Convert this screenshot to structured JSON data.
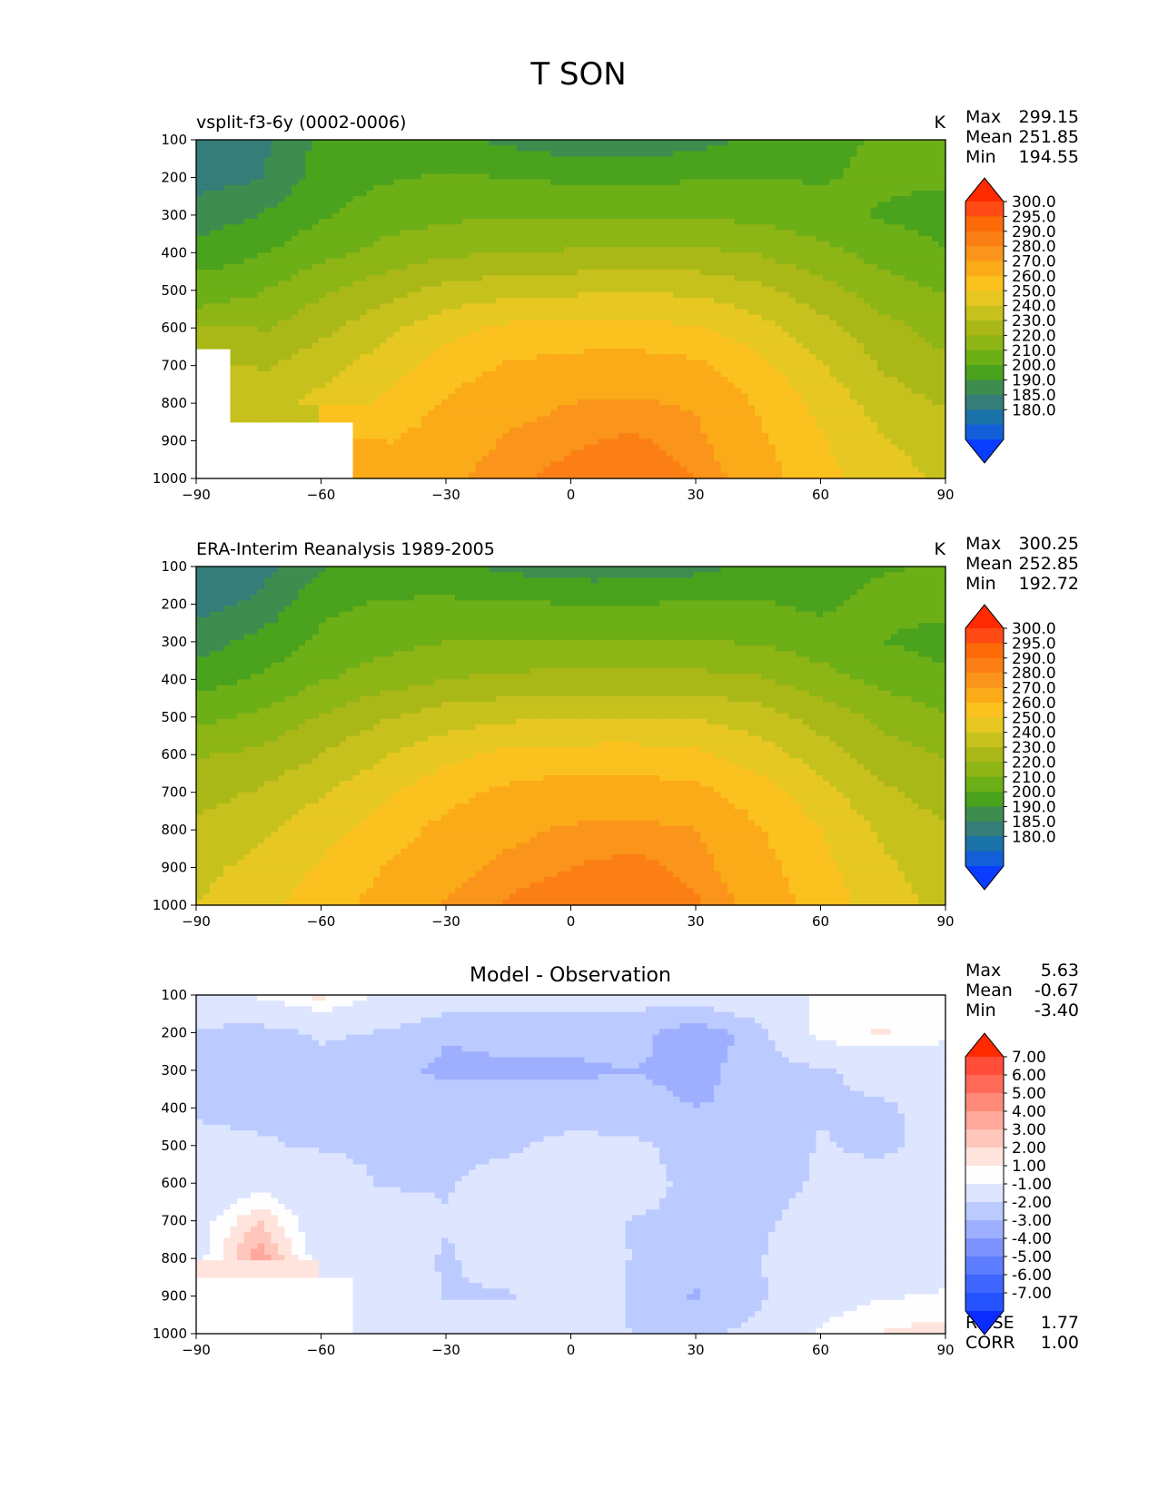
{
  "figure": {
    "title": "T SON"
  },
  "colormaps": {
    "temperature": [
      "#0a3dff",
      "#125fd9",
      "#1a73a8",
      "#357d78",
      "#3e8d4e",
      "#4aa21d",
      "#6daf17",
      "#8db515",
      "#aab817",
      "#c7c11d",
      "#e7c822",
      "#fbc11e",
      "#fbaa18",
      "#fb941a",
      "#fb7f14",
      "#fd6a08",
      "#ff4a16",
      "#ff2a00"
    ],
    "difference": [
      "#0b2bff",
      "#2452ff",
      "#3f66ff",
      "#5c7dff",
      "#7d94ff",
      "#9eafff",
      "#bccbff",
      "#dde5ff",
      "#fefefe",
      "#ffe3dd",
      "#ffc7bc",
      "#ffa89b",
      "#ff8a79",
      "#ff6a58",
      "#ff4d3a",
      "#ff2a00"
    ]
  },
  "panels": [
    {
      "title": "vsplit-f3-6y (0002-0006)",
      "units": "K",
      "stats": [
        {
          "label": "Max",
          "value": "299.15"
        },
        {
          "label": "Mean",
          "value": "251.85"
        },
        {
          "label": "Min",
          "value": "194.55"
        }
      ],
      "colorbar_labels": [
        "300.0",
        "295.0",
        "290.0",
        "280.0",
        "270.0",
        "260.0",
        "250.0",
        "240.0",
        "230.0",
        "220.0",
        "210.0",
        "200.0",
        "190.0",
        "185.0",
        "180.0"
      ]
    },
    {
      "title": "ERA-Interim Reanalysis 1989-2005",
      "units": "K",
      "stats": [
        {
          "label": "Max",
          "value": "300.25"
        },
        {
          "label": "Mean",
          "value": "252.85"
        },
        {
          "label": "Min",
          "value": "192.72"
        }
      ],
      "colorbar_labels": [
        "300.0",
        "295.0",
        "290.0",
        "280.0",
        "270.0",
        "260.0",
        "250.0",
        "240.0",
        "230.0",
        "220.0",
        "210.0",
        "200.0",
        "190.0",
        "185.0",
        "180.0"
      ]
    },
    {
      "title": "Model - Observation",
      "units": "",
      "stats": [
        {
          "label": "Max",
          "value": "5.63"
        },
        {
          "label": "Mean",
          "value": "-0.67"
        },
        {
          "label": "Min",
          "value": "-3.40"
        }
      ],
      "colorbar_labels": [
        "7.00",
        "6.00",
        "5.00",
        "4.00",
        "3.00",
        "2.00",
        "1.00",
        "-1.00",
        "-2.00",
        "-3.00",
        "-4.00",
        "-5.00",
        "-6.00",
        "-7.00"
      ],
      "extra_stats": [
        {
          "label": "RMSE",
          "value": "1.77"
        },
        {
          "label": "CORR",
          "value": "1.00"
        }
      ]
    }
  ],
  "chart_data": [
    {
      "type": "heatmap",
      "title": "vsplit-f3-6y (0002-0006)",
      "units": "K",
      "x_ticks": [
        "−90",
        "−60",
        "−30",
        "0",
        "30",
        "60",
        "90"
      ],
      "y_ticks": [
        "100",
        "200",
        "300",
        "400",
        "500",
        "600",
        "700",
        "800",
        "900",
        "1000"
      ],
      "xlim": [
        -90,
        90
      ],
      "ylim": [
        1000,
        100
      ],
      "levels": [
        180,
        185,
        190,
        200,
        210,
        220,
        230,
        240,
        250,
        260,
        270,
        280,
        290,
        295,
        300
      ],
      "x": [
        -90,
        -75,
        -60,
        -45,
        -30,
        -15,
        0,
        15,
        30,
        45,
        60,
        75,
        90
      ],
      "y": [
        100,
        200,
        300,
        400,
        500,
        600,
        700,
        800,
        900,
        1000
      ],
      "values": [
        [
          195,
          197,
          212,
          214,
          212,
          208,
          203,
          203,
          206,
          213,
          218,
          221,
          223
        ],
        [
          196,
          199,
          215,
          219,
          221,
          220,
          218,
          218,
          219,
          220,
          219,
          222,
          222
        ],
        [
          204,
          210,
          219,
          225,
          228,
          229,
          229,
          229,
          229,
          227,
          224,
          219,
          215
        ],
        [
          214,
          219,
          227,
          233,
          238,
          240,
          241,
          242,
          242,
          239,
          233,
          226,
          221
        ],
        [
          225,
          229,
          238,
          246,
          253,
          257,
          258,
          259,
          258,
          253,
          244,
          235,
          229
        ],
        [
          236,
          238,
          247,
          257,
          266,
          272,
          273,
          273,
          271,
          264,
          254,
          243,
          236
        ],
        [
          null,
          248,
          256,
          265,
          275,
          281,
          284,
          285,
          282,
          273,
          261,
          249,
          242
        ],
        [
          null,
          256,
          263,
          272,
          281,
          287,
          290,
          291,
          289,
          279,
          267,
          255,
          249
        ],
        [
          null,
          null,
          null,
          279,
          285,
          291,
          294,
          296,
          292,
          282,
          271,
          261,
          255
        ],
        [
          null,
          null,
          null,
          282,
          288,
          294,
          297,
          299,
          295,
          285,
          274,
          264,
          258
        ]
      ]
    },
    {
      "type": "heatmap",
      "title": "ERA-Interim Reanalysis 1989-2005",
      "units": "K",
      "x_ticks": [
        "−90",
        "−60",
        "−30",
        "0",
        "30",
        "60",
        "90"
      ],
      "y_ticks": [
        "100",
        "200",
        "300",
        "400",
        "500",
        "600",
        "700",
        "800",
        "900",
        "1000"
      ],
      "xlim": [
        -90,
        90
      ],
      "ylim": [
        1000,
        100
      ],
      "levels": [
        180,
        185,
        190,
        200,
        210,
        220,
        230,
        240,
        250,
        260,
        270,
        280,
        290,
        295,
        300
      ],
      "x": [
        -90,
        -75,
        -60,
        -45,
        -30,
        -15,
        0,
        15,
        30,
        45,
        60,
        75,
        90
      ],
      "y": [
        100,
        200,
        300,
        400,
        500,
        600,
        700,
        800,
        900,
        1000
      ],
      "values": [
        [
          193,
          196,
          209,
          214,
          212,
          208,
          204,
          204,
          207,
          213,
          217,
          219,
          221
        ],
        [
          196,
          202,
          218,
          221,
          222,
          221,
          220,
          220,
          221,
          221,
          218,
          223,
          223
        ],
        [
          205,
          213,
          222,
          227,
          230,
          231,
          231,
          231,
          231,
          229,
          225,
          220,
          216
        ],
        [
          216,
          221,
          229,
          235,
          240,
          242,
          244,
          244,
          243,
          241,
          234,
          227,
          222
        ],
        [
          227,
          232,
          241,
          249,
          255,
          258,
          259,
          260,
          259,
          255,
          246,
          237,
          231
        ],
        [
          239,
          242,
          250,
          259,
          267,
          273,
          274,
          274,
          272,
          265,
          255,
          245,
          239
        ],
        [
          246,
          251,
          259,
          268,
          277,
          282,
          285,
          285,
          283,
          275,
          264,
          252,
          245
        ],
        [
          252,
          258,
          266,
          275,
          283,
          288,
          291,
          292,
          290,
          281,
          270,
          258,
          251
        ],
        [
          257,
          263,
          271,
          280,
          287,
          292,
          295,
          297,
          293,
          284,
          273,
          262,
          254
        ],
        [
          260,
          267,
          275,
          284,
          291,
          296,
          299,
          300,
          296,
          287,
          276,
          265,
          257
        ]
      ]
    },
    {
      "type": "heatmap",
      "title": "Model - Observation",
      "units": "",
      "x_ticks": [
        "−90",
        "−60",
        "−30",
        "0",
        "30",
        "60",
        "90"
      ],
      "y_ticks": [
        "100",
        "200",
        "300",
        "400",
        "500",
        "600",
        "700",
        "800",
        "900",
        "1000"
      ],
      "xlim": [
        -90,
        90
      ],
      "ylim": [
        1000,
        100
      ],
      "levels": [
        -7,
        -6,
        -5,
        -4,
        -3,
        -2,
        -1,
        1,
        2,
        3,
        4,
        5,
        6,
        7
      ],
      "x": [
        -90,
        -75,
        -60,
        -45,
        -30,
        -15,
        0,
        15,
        30,
        45,
        60,
        75,
        90
      ],
      "y": [
        100,
        200,
        300,
        400,
        500,
        600,
        700,
        800,
        900,
        1000
      ],
      "values": [
        [
          0.5,
          1.2,
          2.4,
          0.6,
          -0.2,
          -0.4,
          -0.3,
          -0.5,
          -0.4,
          0.4,
          1.2,
          1.5,
          1.3
        ],
        [
          -1.2,
          -1.6,
          -0.8,
          -1.1,
          -1.9,
          -1.8,
          -1.8,
          -1.7,
          -2.6,
          -1.6,
          1.6,
          2.1,
          1.4
        ],
        [
          -1.1,
          -1.3,
          -1.5,
          -1.7,
          -2.2,
          -2.1,
          -2.1,
          -2.0,
          -2.2,
          -1.7,
          -1.2,
          -0.5,
          -0.3
        ],
        [
          -1.1,
          -1.2,
          -1.3,
          -1.4,
          -1.5,
          -1.6,
          -1.7,
          -1.8,
          -2.0,
          -1.9,
          -1.1,
          -1.2,
          -0.5
        ],
        [
          -0.8,
          -0.9,
          -1.1,
          -1.2,
          -1.3,
          -1.2,
          -0.6,
          -0.7,
          -1.6,
          -1.9,
          -0.9,
          -1.3,
          -0.4
        ],
        [
          -0.6,
          0.4,
          -0.4,
          -1.1,
          -1.1,
          -0.5,
          -0.3,
          -0.4,
          -1.4,
          -1.6,
          -0.8,
          -0.4,
          0.1
        ],
        [
          0.2,
          3.0,
          -0.2,
          -0.4,
          -0.9,
          0.3,
          0.2,
          -1.1,
          -1.2,
          -1.3,
          -0.3,
          0.2,
          0.3
        ],
        [
          0.3,
          4.8,
          0.1,
          0.1,
          -1.2,
          -0.2,
          0.3,
          -1.1,
          -1.5,
          -1.1,
          0.1,
          0.3,
          0.4
        ],
        [
          null,
          null,
          null,
          0.2,
          -1.1,
          -1.2,
          0.2,
          -1.2,
          -2.1,
          -1.2,
          0.3,
          0.9,
          1.1
        ],
        [
          null,
          null,
          null,
          0.4,
          -0.3,
          0.3,
          0.4,
          -1.1,
          -1.4,
          -0.6,
          1.2,
          2.1,
          2.5
        ]
      ]
    }
  ]
}
